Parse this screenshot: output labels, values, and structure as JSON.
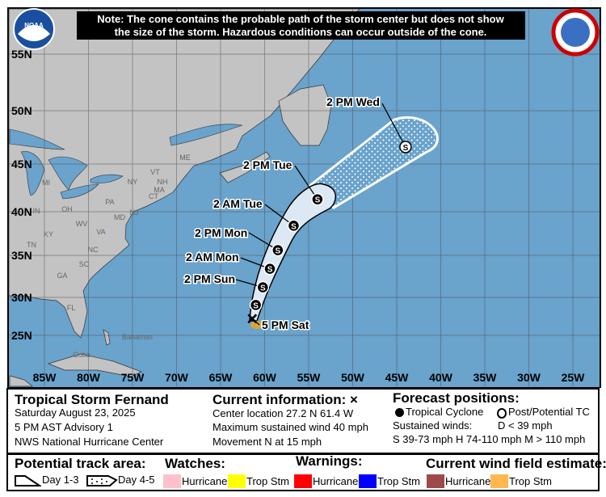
{
  "note": [
    "Note: The cone contains the probable path of the storm center but does not show",
    "the size of the storm. Hazardous conditions can occur outside of the cone."
  ],
  "logos": {
    "left": "NOAA",
    "right": "NATIONAL WEATHER SERVICE"
  },
  "map": {
    "lat_labels": [
      "55N",
      "50N",
      "45N",
      "40N",
      "35N",
      "30N",
      "25N"
    ],
    "lon_labels": [
      "85W",
      "80W",
      "75W",
      "70W",
      "65W",
      "60W",
      "55W",
      "50W",
      "45W",
      "40W",
      "35W",
      "30W",
      "25W"
    ],
    "place_labels": [
      "ME",
      "VT",
      "NH",
      "MA",
      "CT",
      "NY",
      "PA",
      "MI",
      "OH",
      "WV",
      "VA",
      "KY",
      "TN",
      "NC",
      "SC",
      "GA",
      "FL",
      "Bahamas",
      "Cuba",
      "MD",
      "NJ",
      "IN"
    ],
    "forecast_points": [
      {
        "label": "5 PM Sat",
        "lat": 27.2,
        "lon": 61.4,
        "type": "current"
      },
      {
        "label": "",
        "lat": 29.0,
        "lon": 61.0,
        "type": "S"
      },
      {
        "label": "2 PM Sun",
        "lat": 31.2,
        "lon": 60.2,
        "type": "S"
      },
      {
        "label": "2 AM Mon",
        "lat": 33.4,
        "lon": 59.4,
        "type": "S"
      },
      {
        "label": "2 PM Mon",
        "lat": 35.6,
        "lon": 58.5,
        "type": "S"
      },
      {
        "label": "2 AM Tue",
        "lat": 38.4,
        "lon": 56.7,
        "type": "S"
      },
      {
        "label": "2 PM Tue",
        "lat": 41.3,
        "lon": 54.0,
        "type": "S"
      },
      {
        "label": "2 PM Wed",
        "lat": 46.6,
        "lon": 44.0,
        "type": "S-post"
      }
    ],
    "colors": {
      "ocean": "#6aa3cc",
      "land": "#c3c3c3",
      "cone_day13": "#dce9f4",
      "wind_trop_stm": "#d9a636"
    }
  },
  "info": {
    "storm_name": "Tropical Storm Fernand",
    "date": "Saturday August 23, 2025",
    "advisory": "5 PM AST Advisory 1",
    "center": "NWS National Hurricane Center",
    "current_title": "Current information: ×",
    "location": "Center location 27.2 N 61.4 W",
    "wind": "Maximum sustained wind 40 mph",
    "movement": "Movement N at 15 mph",
    "forecast_title": "Forecast positions:",
    "tc": "Tropical Cyclone",
    "post_tc": "Post/Potential TC",
    "sustained": "Sustained winds:",
    "d": "D < 39 mph",
    "scale": "S 39-73 mph  H 74-110 mph  M > 110 mph"
  },
  "legend": {
    "track_title": "Potential track area:",
    "day13": "Day 1-3",
    "day45": "Day 4-5",
    "watches_title": "Watches:",
    "warnings_title": "Warnings:",
    "wind_title": "Current wind field estimate:",
    "hurricane": "Hurricane",
    "trop_stm": "Trop Stm",
    "colors": {
      "watch_hurricane": "#ffc0cb",
      "watch_trop": "#ffff00",
      "warn_hurricane": "#ff0000",
      "warn_trop": "#0000ff",
      "wind_hurricane": "#9e4a4a",
      "wind_trop": "#ffb84d"
    }
  }
}
